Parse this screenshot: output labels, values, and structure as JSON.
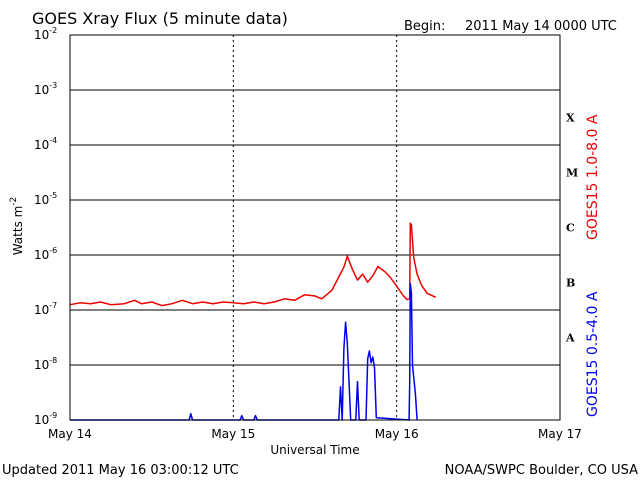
{
  "header": {
    "title": "GOES Xray Flux (5 minute data)",
    "begin_label": "Begin:",
    "begin_value": "2011 May 14 0000 UTC"
  },
  "footer": {
    "updated": "Updated 2011 May 16 03:00:12 UTC",
    "credit": "NOAA/SWPC Boulder, CO USA"
  },
  "chart_data": {
    "type": "line",
    "title": "GOES Xray Flux (5 minute data)",
    "xlabel": "Universal Time",
    "ylabel": {
      "base": "Watts m",
      "exponent": "-2"
    },
    "y_scale": "log",
    "ylim": [
      1e-09,
      0.01
    ],
    "xlim": [
      "2011-05-14T00:00Z",
      "2011-05-17T00:00Z"
    ],
    "grid": "horizontal lines at each decade, vertical dotted lines at each day",
    "x_ticks": [
      "May 14",
      "May 15",
      "May 16",
      "May 17"
    ],
    "y_ticks": [
      {
        "mantissa": "10",
        "exponent": "-2",
        "value": 0.01
      },
      {
        "mantissa": "10",
        "exponent": "-3",
        "value": 0.001
      },
      {
        "mantissa": "10",
        "exponent": "-4",
        "value": 0.0001
      },
      {
        "mantissa": "10",
        "exponent": "-5",
        "value": 1e-05
      },
      {
        "mantissa": "10",
        "exponent": "-6",
        "value": 1e-06
      },
      {
        "mantissa": "10",
        "exponent": "-7",
        "value": 1e-07
      },
      {
        "mantissa": "10",
        "exponent": "-8",
        "value": 1e-08
      },
      {
        "mantissa": "10",
        "exponent": "-9",
        "value": 1e-09
      }
    ],
    "flare_classes": [
      {
        "label": "X",
        "value": 0.000316
      },
      {
        "label": "M",
        "value": 3.16e-05
      },
      {
        "label": "C",
        "value": 3.16e-06
      },
      {
        "label": "B",
        "value": 3.16e-07
      },
      {
        "label": "A",
        "value": 3.16e-08
      }
    ],
    "colors": {
      "long": "#ee0000",
      "short": "#0000ee",
      "grid": "#000000"
    },
    "series": [
      {
        "name": "GOES15 1.0-8.0 A",
        "color": "#ee0000",
        "points": [
          [
            "2011-05-14T00:00Z",
            1.25e-07
          ],
          [
            "2011-05-14T01:30Z",
            1.35e-07
          ],
          [
            "2011-05-14T03:00Z",
            1.3e-07
          ],
          [
            "2011-05-14T04:30Z",
            1.4e-07
          ],
          [
            "2011-05-14T06:00Z",
            1.25e-07
          ],
          [
            "2011-05-14T08:00Z",
            1.3e-07
          ],
          [
            "2011-05-14T09:30Z",
            1.5e-07
          ],
          [
            "2011-05-14T10:30Z",
            1.3e-07
          ],
          [
            "2011-05-14T12:00Z",
            1.4e-07
          ],
          [
            "2011-05-14T13:30Z",
            1.2e-07
          ],
          [
            "2011-05-14T15:00Z",
            1.3e-07
          ],
          [
            "2011-05-14T16:30Z",
            1.5e-07
          ],
          [
            "2011-05-14T18:00Z",
            1.3e-07
          ],
          [
            "2011-05-14T19:30Z",
            1.4e-07
          ],
          [
            "2011-05-14T21:00Z",
            1.3e-07
          ],
          [
            "2011-05-14T22:30Z",
            1.4e-07
          ],
          [
            "2011-05-15T00:00Z",
            1.35e-07
          ],
          [
            "2011-05-15T01:30Z",
            1.3e-07
          ],
          [
            "2011-05-15T03:00Z",
            1.4e-07
          ],
          [
            "2011-05-15T04:30Z",
            1.3e-07
          ],
          [
            "2011-05-15T06:00Z",
            1.4e-07
          ],
          [
            "2011-05-15T07:30Z",
            1.6e-07
          ],
          [
            "2011-05-15T09:00Z",
            1.5e-07
          ],
          [
            "2011-05-15T10:30Z",
            1.9e-07
          ],
          [
            "2011-05-15T12:00Z",
            1.8e-07
          ],
          [
            "2011-05-15T13:00Z",
            1.6e-07
          ],
          [
            "2011-05-15T14:30Z",
            2.3e-07
          ],
          [
            "2011-05-15T15:30Z",
            4e-07
          ],
          [
            "2011-05-15T16:15Z",
            6e-07
          ],
          [
            "2011-05-15T16:45Z",
            9.5e-07
          ],
          [
            "2011-05-15T17:30Z",
            5.5e-07
          ],
          [
            "2011-05-15T18:15Z",
            3.5e-07
          ],
          [
            "2011-05-15T19:00Z",
            4.5e-07
          ],
          [
            "2011-05-15T19:45Z",
            3.2e-07
          ],
          [
            "2011-05-15T20:30Z",
            4.2e-07
          ],
          [
            "2011-05-15T21:15Z",
            6.2e-07
          ],
          [
            "2011-05-15T21:45Z",
            5.5e-07
          ],
          [
            "2011-05-15T22:15Z",
            5e-07
          ],
          [
            "2011-05-15T23:00Z",
            4e-07
          ],
          [
            "2011-05-15T23:45Z",
            3e-07
          ],
          [
            "2011-05-16T00:30Z",
            2.2e-07
          ],
          [
            "2011-05-16T01:00Z",
            1.8e-07
          ],
          [
            "2011-05-16T01:30Z",
            1.55e-07
          ],
          [
            "2011-05-16T01:55Z",
            1.6e-07
          ],
          [
            "2011-05-16T02:00Z",
            3.8e-06
          ],
          [
            "2011-05-16T02:10Z",
            3.5e-06
          ],
          [
            "2011-05-16T02:30Z",
            9e-07
          ],
          [
            "2011-05-16T03:00Z",
            4.5e-07
          ],
          [
            "2011-05-16T03:40Z",
            2.8e-07
          ],
          [
            "2011-05-16T04:30Z",
            2e-07
          ],
          [
            "2011-05-16T05:45Z",
            1.7e-07
          ]
        ]
      },
      {
        "name": "GOES15 0.5-4.0 A",
        "color": "#0000ee",
        "points": [
          [
            "2011-05-14T00:00Z",
            1e-09
          ],
          [
            "2011-05-14T17:30Z",
            1e-09
          ],
          [
            "2011-05-14T17:45Z",
            1.3e-09
          ],
          [
            "2011-05-14T18:00Z",
            1e-09
          ],
          [
            "2011-05-15T01:00Z",
            1e-09
          ],
          [
            "2011-05-15T01:15Z",
            1.2e-09
          ],
          [
            "2011-05-15T01:30Z",
            1e-09
          ],
          [
            "2011-05-15T03:00Z",
            1e-09
          ],
          [
            "2011-05-15T03:15Z",
            1.2e-09
          ],
          [
            "2011-05-15T03:30Z",
            1e-09
          ],
          [
            "2011-05-15T15:30Z",
            1e-09
          ],
          [
            "2011-05-15T15:45Z",
            4e-09
          ],
          [
            "2011-05-15T16:00Z",
            1e-09
          ],
          [
            "2011-05-15T16:15Z",
            2e-08
          ],
          [
            "2011-05-15T16:30Z",
            6e-08
          ],
          [
            "2011-05-15T16:45Z",
            2.5e-08
          ],
          [
            "2011-05-15T17:15Z",
            1e-09
          ],
          [
            "2011-05-15T18:00Z",
            1e-09
          ],
          [
            "2011-05-15T18:15Z",
            5e-09
          ],
          [
            "2011-05-15T18:30Z",
            1e-09
          ],
          [
            "2011-05-15T19:30Z",
            1e-09
          ],
          [
            "2011-05-15T19:45Z",
            1.3e-08
          ],
          [
            "2011-05-15T20:00Z",
            1.8e-08
          ],
          [
            "2011-05-15T20:15Z",
            1.1e-08
          ],
          [
            "2011-05-15T20:30Z",
            1.4e-08
          ],
          [
            "2011-05-15T20:45Z",
            9e-09
          ],
          [
            "2011-05-15T21:00Z",
            1.1e-09
          ],
          [
            "2011-05-16T01:50Z",
            1e-09
          ],
          [
            "2011-05-16T01:55Z",
            5e-09
          ],
          [
            "2011-05-16T02:00Z",
            3e-07
          ],
          [
            "2011-05-16T02:10Z",
            2e-07
          ],
          [
            "2011-05-16T02:20Z",
            1e-08
          ],
          [
            "2011-05-16T02:45Z",
            3e-09
          ],
          [
            "2011-05-16T03:00Z",
            1e-09
          ]
        ]
      }
    ]
  }
}
